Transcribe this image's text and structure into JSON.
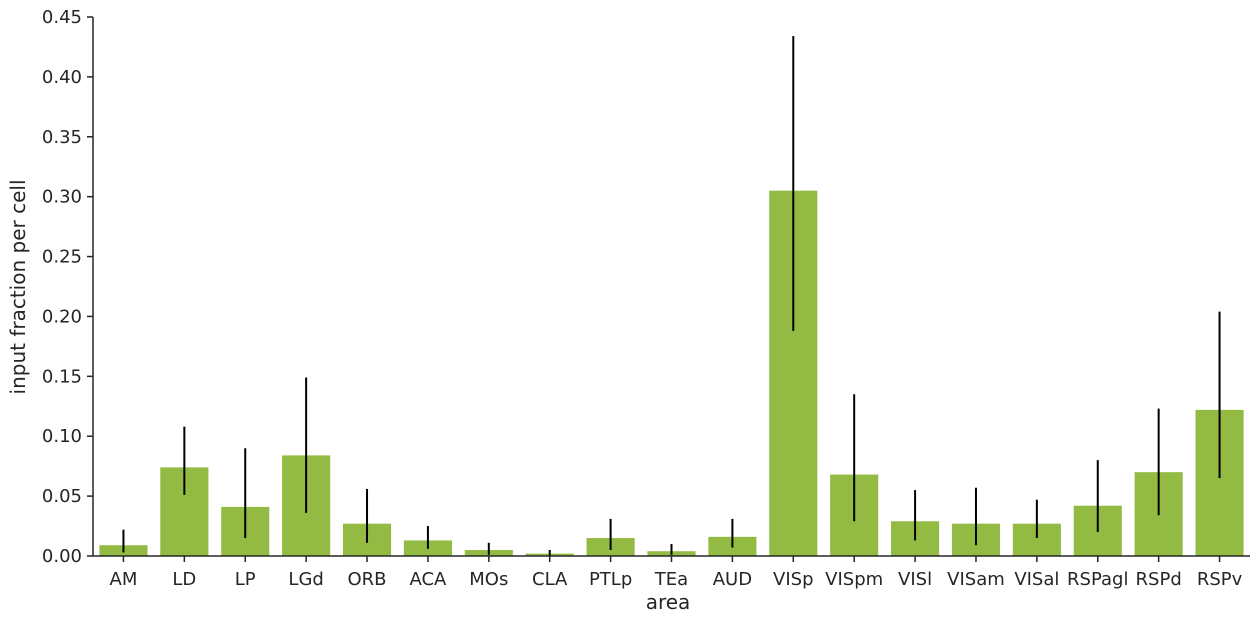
{
  "chart_data": {
    "type": "bar",
    "title": "",
    "xlabel": "area",
    "ylabel": "input fraction per cell",
    "ylim": [
      0,
      0.45
    ],
    "yticks": [
      "0.00",
      "0.05",
      "0.10",
      "0.15",
      "0.20",
      "0.25",
      "0.30",
      "0.35",
      "0.40",
      "0.45"
    ],
    "grid": false,
    "bar_color": "#93bb44",
    "error_color": "#000000",
    "categories": [
      "AM",
      "LD",
      "LP",
      "LGd",
      "ORB",
      "ACA",
      "MOs",
      "CLA",
      "PTLp",
      "TEa",
      "AUD",
      "VISp",
      "VISpm",
      "VISl",
      "VISam",
      "VISal",
      "RSPagl",
      "RSPd",
      "RSPv"
    ],
    "values": [
      0.009,
      0.074,
      0.041,
      0.084,
      0.027,
      0.013,
      0.005,
      0.002,
      0.015,
      0.004,
      0.016,
      0.305,
      0.068,
      0.029,
      0.027,
      0.027,
      0.042,
      0.07,
      0.122
    ],
    "error_low": [
      0.003,
      0.051,
      0.015,
      0.036,
      0.011,
      0.006,
      0.001,
      0.0,
      0.005,
      0.001,
      0.007,
      0.188,
      0.029,
      0.013,
      0.009,
      0.015,
      0.02,
      0.034,
      0.065
    ],
    "error_high": [
      0.022,
      0.108,
      0.09,
      0.149,
      0.056,
      0.025,
      0.011,
      0.005,
      0.031,
      0.01,
      0.031,
      0.434,
      0.135,
      0.055,
      0.057,
      0.047,
      0.08,
      0.123,
      0.204
    ]
  }
}
